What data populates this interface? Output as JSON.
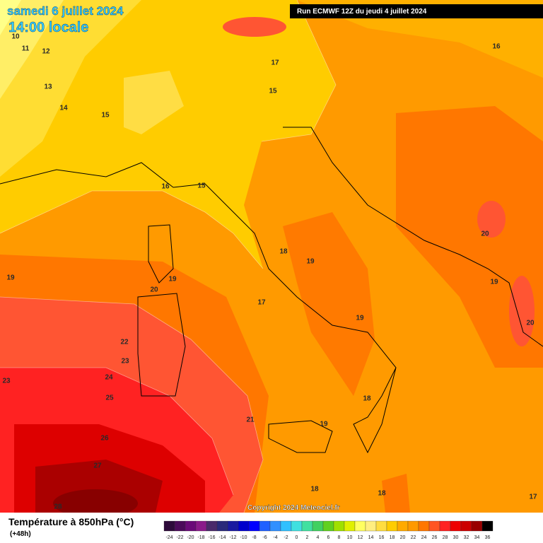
{
  "header": {
    "date": "samedi 6 juillet 2024",
    "time": "14:00 locale",
    "run": "Run ECMWF 12Z du jeudi 4 juillet 2024"
  },
  "map": {
    "contour_labels": [
      "10",
      "11",
      "12",
      "13",
      "14",
      "15",
      "16",
      "15",
      "17",
      "15",
      "16",
      "19",
      "20",
      "19",
      "18",
      "19",
      "17",
      "20",
      "19",
      "20",
      "19",
      "22",
      "23",
      "23",
      "24",
      "25",
      "21",
      "18",
      "19",
      "26",
      "27",
      "18",
      "18",
      "17",
      "28"
    ],
    "copyright": "Copyright 2024 Meteociel.fr"
  },
  "footer": {
    "title": "Température à 850hPa (°C)",
    "lead": "(+48h)"
  },
  "colorbar": {
    "ticks": [
      -24,
      -22,
      -20,
      -18,
      -16,
      -14,
      -12,
      -10,
      -8,
      -6,
      -4,
      -2,
      0,
      2,
      4,
      6,
      8,
      10,
      12,
      14,
      16,
      18,
      20,
      22,
      24,
      26,
      28,
      30,
      32,
      34,
      36
    ],
    "colors": [
      "#2d0a3a",
      "#4b0a5a",
      "#6a0a78",
      "#8a1a8a",
      "#4a2a6a",
      "#2a2a7a",
      "#1a1aa0",
      "#0000cc",
      "#0000ff",
      "#2060ff",
      "#3090ff",
      "#30c0ff",
      "#40e0e0",
      "#40e0a0",
      "#40d060",
      "#60d020",
      "#a0e000",
      "#e0f000",
      "#ffff60",
      "#ffee80",
      "#ffdd40",
      "#ffcc00",
      "#ffaa00",
      "#ff9900",
      "#ff7700",
      "#ff5522",
      "#ff2222",
      "#ee0000",
      "#cc0000",
      "#990000",
      "#000000"
    ]
  }
}
